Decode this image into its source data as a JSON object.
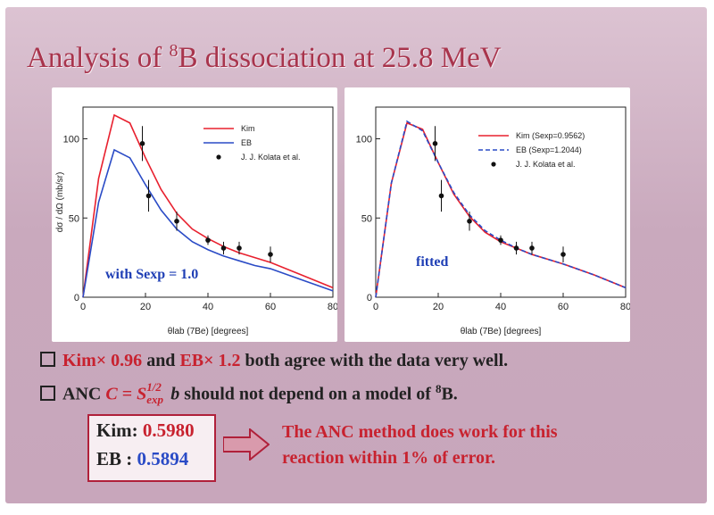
{
  "title": {
    "prefix": "Analysis of ",
    "sup": "8",
    "suffix": "B dissociation at 25.8 MeV"
  },
  "colors": {
    "kim": "#e8202e",
    "eb": "#2a4bc6",
    "data": "#111111",
    "title": "#a8344c"
  },
  "chart_data": [
    {
      "type": "line",
      "xlabel": "θlab (7Be) [degrees]",
      "ylabel": "dσ / dΩ (mb/sr)",
      "xlim": [
        0,
        80
      ],
      "ylim": [
        0,
        120
      ],
      "xticks": [
        0,
        20,
        40,
        60,
        80
      ],
      "yticks": [
        0,
        50,
        100
      ],
      "annotation": "with Sexp = 1.0",
      "series": [
        {
          "name": "Kim",
          "style": "solid",
          "color": "#e8202e",
          "x": [
            0,
            5,
            10,
            15,
            20,
            25,
            30,
            35,
            40,
            45,
            50,
            55,
            60,
            70,
            80
          ],
          "y": [
            0,
            75,
            115,
            110,
            88,
            68,
            53,
            43,
            37,
            32,
            28,
            25,
            22,
            14,
            6
          ]
        },
        {
          "name": "EB",
          "style": "solid",
          "color": "#2a4bc6",
          "x": [
            0,
            5,
            10,
            15,
            20,
            25,
            30,
            35,
            40,
            45,
            50,
            55,
            60,
            70,
            80
          ],
          "y": [
            0,
            60,
            93,
            88,
            71,
            55,
            43,
            35,
            30,
            26,
            23,
            20,
            18,
            11,
            4
          ]
        }
      ],
      "data_points": {
        "name": "J. J. Kolata et al.",
        "x": [
          19,
          21,
          30,
          40,
          45,
          50,
          60
        ],
        "y": [
          97,
          64,
          48,
          36,
          31,
          31,
          27
        ],
        "err": [
          11,
          10,
          6,
          3,
          4,
          4,
          5
        ]
      }
    },
    {
      "type": "line",
      "xlabel": "θlab (7Be) [degrees]",
      "ylabel": "",
      "xlim": [
        0,
        80
      ],
      "ylim": [
        0,
        120
      ],
      "xticks": [
        0,
        20,
        40,
        60,
        80
      ],
      "yticks": [
        0,
        50,
        100
      ],
      "annotation": "fitted",
      "series": [
        {
          "name": "Kim (Sexp=0.9562)",
          "style": "solid",
          "color": "#e8202e",
          "x": [
            0,
            5,
            10,
            15,
            20,
            25,
            30,
            35,
            40,
            45,
            50,
            55,
            60,
            70,
            80
          ],
          "y": [
            0,
            72,
            110,
            106,
            85,
            65,
            51,
            41,
            35,
            31,
            27,
            24,
            21,
            14,
            6
          ]
        },
        {
          "name": "EB (Sexp=1.2044)",
          "style": "dashed",
          "color": "#2a4bc6",
          "x": [
            0,
            5,
            10,
            15,
            20,
            25,
            30,
            35,
            40,
            45,
            50,
            55,
            60,
            70,
            80
          ],
          "y": [
            0,
            72,
            111,
            105,
            85,
            66,
            52,
            42,
            36,
            31,
            27,
            24,
            21,
            14,
            6
          ]
        }
      ],
      "data_points": {
        "name": "J. J. Kolata et al.",
        "x": [
          19,
          21,
          30,
          40,
          45,
          50,
          60
        ],
        "y": [
          97,
          64,
          48,
          36,
          31,
          31,
          27
        ],
        "err": [
          11,
          10,
          6,
          3,
          4,
          4,
          5
        ]
      }
    }
  ],
  "bullets": {
    "b1": {
      "kim": "Kim",
      "kim_factor": "× 0.96",
      "and": " and ",
      "eb": "EB",
      "eb_factor": "× 1.2",
      "rest": " both agree with the data very well."
    },
    "b2": {
      "lead": "ANC ",
      "c": "C = S",
      "sub_top": "1/2",
      "sub_bottom": "exp",
      "b": " b",
      "rest": " should not depend on a model of ",
      "sup": "8",
      "end": "B."
    }
  },
  "anc": {
    "kim_label": "Kim: ",
    "kim_value": "0.5980",
    "eb_label": "EB : ",
    "eb_value": "0.5894"
  },
  "conclusion": {
    "line1": "The ANC method does work for this",
    "line2": "reaction within 1% of error."
  }
}
